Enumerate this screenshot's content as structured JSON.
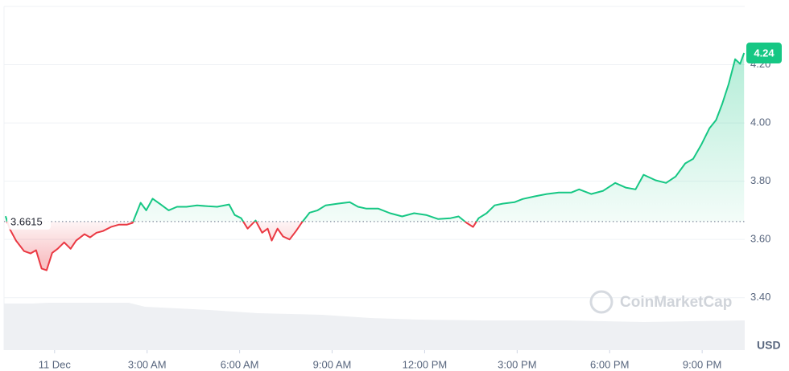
{
  "chart_data": {
    "type": "line",
    "x": [
      -1.59,
      -1.46,
      -1.25,
      -0.99,
      -0.78,
      -0.6,
      -0.42,
      -0.26,
      -0.08,
      0.1,
      0.31,
      0.52,
      0.7,
      0.97,
      1.15,
      1.36,
      1.57,
      1.83,
      2.09,
      2.35,
      2.53,
      2.79,
      2.97,
      3.18,
      3.44,
      3.7,
      3.97,
      4.28,
      4.62,
      4.96,
      5.27,
      5.66,
      5.84,
      6.05,
      6.26,
      6.52,
      6.73,
      6.91,
      7.04,
      7.23,
      7.41,
      7.62,
      7.83,
      8.01,
      8.27,
      8.53,
      8.79,
      9.18,
      9.57,
      9.84,
      10.1,
      10.49,
      10.88,
      11.27,
      11.66,
      12.05,
      12.44,
      12.84,
      13.1,
      13.36,
      13.57,
      13.75,
      14.01,
      14.27,
      14.53,
      14.92,
      15.18,
      15.57,
      15.96,
      16.35,
      16.75,
      17.01,
      17.4,
      17.79,
      18.18,
      18.52,
      18.84,
      19.1,
      19.49,
      19.83,
      20.14,
      20.45,
      20.71,
      20.98,
      21.24,
      21.45,
      21.65,
      21.86,
      22.07,
      22.23,
      22.36
    ],
    "series": [
      {
        "color": "#16c784",
        "negative_color": "#ea3943",
        "values": [
          3.68,
          3.637,
          3.596,
          3.56,
          3.552,
          3.563,
          3.5,
          3.494,
          3.554,
          3.568,
          3.59,
          3.568,
          3.596,
          3.618,
          3.607,
          3.623,
          3.629,
          3.643,
          3.651,
          3.651,
          3.657,
          3.726,
          3.7,
          3.74,
          3.72,
          3.7,
          3.712,
          3.712,
          3.717,
          3.714,
          3.712,
          3.72,
          3.684,
          3.673,
          3.637,
          3.665,
          3.623,
          3.637,
          3.596,
          3.637,
          3.61,
          3.6,
          3.629,
          3.657,
          3.692,
          3.7,
          3.717,
          3.723,
          3.728,
          3.712,
          3.706,
          3.706,
          3.69,
          3.679,
          3.69,
          3.684,
          3.67,
          3.673,
          3.679,
          3.657,
          3.643,
          3.673,
          3.69,
          3.717,
          3.723,
          3.728,
          3.739,
          3.748,
          3.756,
          3.761,
          3.761,
          3.772,
          3.756,
          3.767,
          3.794,
          3.778,
          3.772,
          3.822,
          3.803,
          3.794,
          3.816,
          3.861,
          3.877,
          3.927,
          3.982,
          4.01,
          4.065,
          4.134,
          4.219,
          4.203,
          4.24
        ]
      }
    ],
    "baseline": 3.6615,
    "xlim": [
      -1.64,
      22.38
    ],
    "xticks": [
      {
        "value": 0,
        "label": "11 Dec"
      },
      {
        "value": 3,
        "label": "3:00 AM"
      },
      {
        "value": 6,
        "label": "6:00 AM"
      },
      {
        "value": 9,
        "label": "9:00 AM"
      },
      {
        "value": 12,
        "label": "12:00 PM"
      },
      {
        "value": 15,
        "label": "3:00 PM"
      },
      {
        "value": 18,
        "label": "6:00 PM"
      },
      {
        "value": 21,
        "label": "9:00 PM"
      }
    ],
    "ylim": [
      3.22,
      4.4
    ],
    "yticks": [
      {
        "value": 3.4,
        "label": "3.40"
      },
      {
        "value": 3.6,
        "label": "3.60"
      },
      {
        "value": 3.8,
        "label": "3.80"
      },
      {
        "value": 4.0,
        "label": "4.00"
      },
      {
        "value": 4.2,
        "label": "4.20"
      }
    ],
    "y_unit": "USD",
    "watermark": "CoinMarketCap",
    "grid": true
  }
}
